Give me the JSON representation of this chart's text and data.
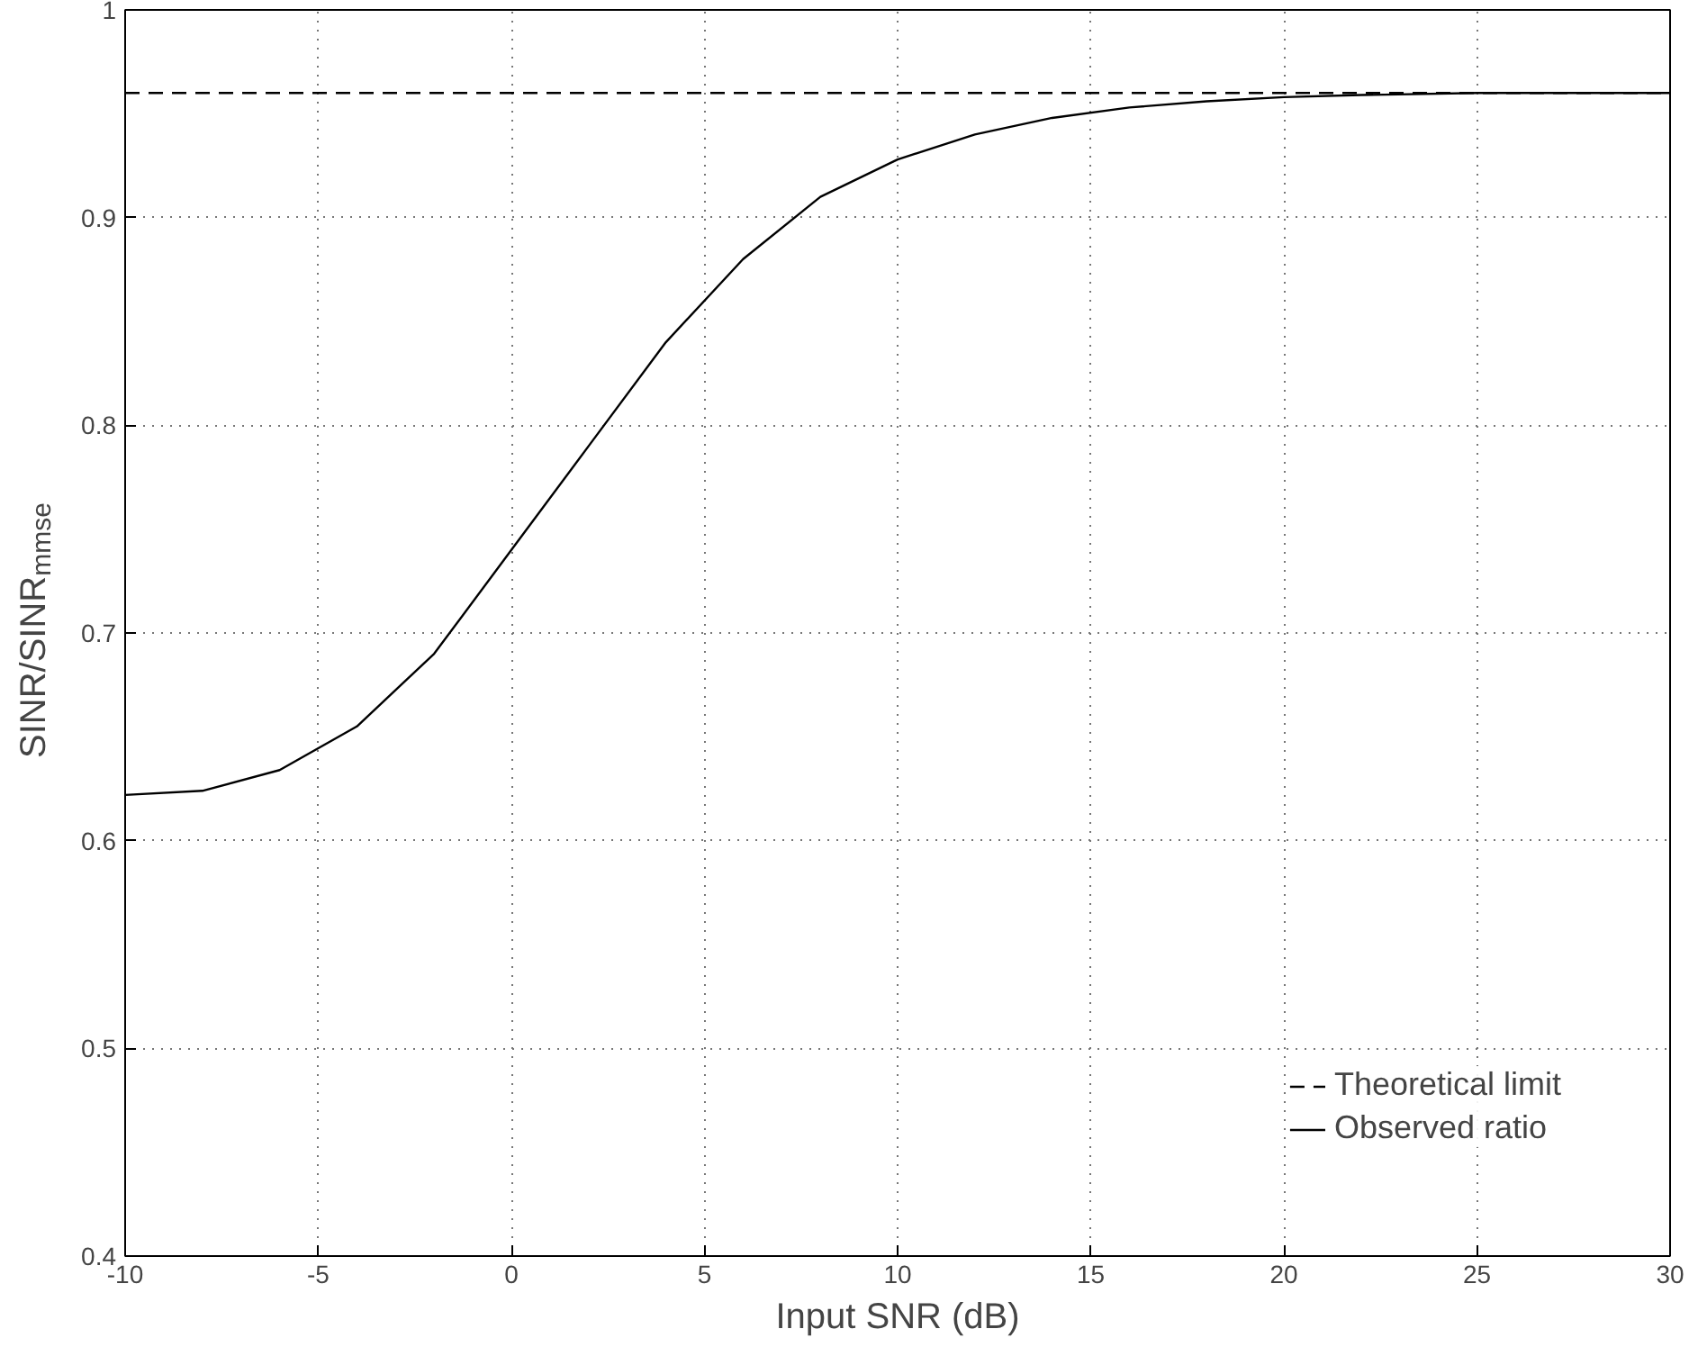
{
  "chart_data": {
    "type": "line",
    "xlabel": "Input SNR (dB)",
    "ylabel": "SINR/SINR$_{mmse}$",
    "x": [
      -10,
      -8,
      -6,
      -4,
      -2,
      0,
      2,
      4,
      6,
      8,
      10,
      12,
      14,
      16,
      18,
      20,
      22,
      25,
      30
    ],
    "series": [
      {
        "name": "Theoretical limit",
        "color": "#000000",
        "line_style": "dashed",
        "x": [
          -10,
          30
        ],
        "values": [
          0.96,
          0.96
        ]
      },
      {
        "name": "Observed ratio",
        "color": "#000000",
        "line_style": "solid",
        "values": [
          0.622,
          0.624,
          0.634,
          0.655,
          0.69,
          0.74,
          0.79,
          0.84,
          0.88,
          0.91,
          0.928,
          0.94,
          0.948,
          0.953,
          0.956,
          0.958,
          0.959,
          0.96,
          0.96
        ]
      }
    ],
    "xlim": [
      -10,
      30
    ],
    "ylim": [
      0.4,
      1
    ],
    "xticks": [
      -10,
      -5,
      0,
      5,
      10,
      15,
      20,
      25,
      30
    ],
    "yticks": [
      0.4,
      0.5,
      0.6,
      0.7,
      0.8,
      0.9,
      1
    ],
    "grid": true,
    "legend": "bottom right"
  }
}
